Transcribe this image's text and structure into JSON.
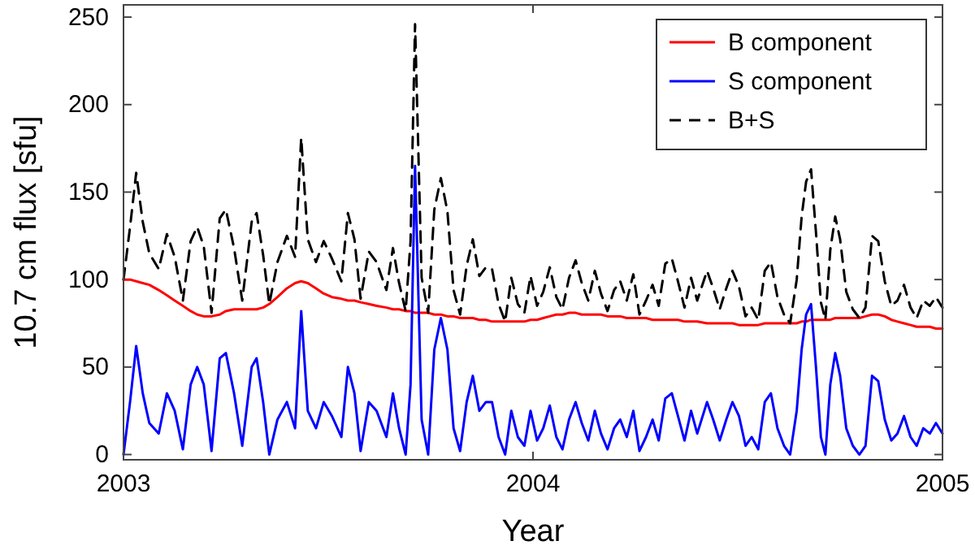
{
  "chart_data": {
    "type": "line",
    "xlabel": "Year",
    "ylabel": "10.7 cm flux [sfu]",
    "x": [
      2003.0,
      2003.016,
      2003.031,
      2003.047,
      2003.063,
      2003.086,
      2003.106,
      2003.125,
      2003.145,
      2003.164,
      2003.18,
      2003.196,
      2003.215,
      2003.235,
      2003.25,
      2003.27,
      2003.29,
      2003.313,
      2003.325,
      2003.341,
      2003.356,
      2003.376,
      2003.399,
      2003.419,
      2003.434,
      2003.45,
      2003.47,
      2003.489,
      2003.509,
      2003.532,
      2003.548,
      2003.564,
      2003.579,
      2003.599,
      2003.618,
      2003.642,
      2003.658,
      2003.673,
      2003.689,
      2003.701,
      2003.712,
      2003.728,
      2003.744,
      2003.759,
      2003.775,
      2003.791,
      2003.806,
      2003.822,
      2003.838,
      2003.853,
      2003.869,
      2003.885,
      2003.9,
      2003.916,
      2003.932,
      2003.947,
      2003.963,
      2003.979,
      2003.994,
      2004.01,
      2004.025,
      2004.041,
      2004.057,
      2004.072,
      2004.088,
      2004.104,
      2004.119,
      2004.135,
      2004.151,
      2004.166,
      2004.182,
      2004.198,
      2004.213,
      2004.229,
      2004.245,
      2004.26,
      2004.276,
      2004.292,
      2004.307,
      2004.323,
      2004.339,
      2004.354,
      2004.37,
      2004.386,
      2004.401,
      2004.425,
      2004.44,
      2004.456,
      2004.472,
      2004.487,
      2004.503,
      2004.519,
      2004.534,
      2004.55,
      2004.566,
      2004.581,
      2004.597,
      2004.613,
      2004.628,
      2004.644,
      2004.656,
      2004.667,
      2004.679,
      2004.691,
      2004.703,
      2004.714,
      2004.726,
      2004.738,
      2004.75,
      2004.765,
      2004.781,
      2004.797,
      2004.812,
      2004.828,
      2004.843,
      2004.859,
      2004.875,
      2004.89,
      2004.906,
      2004.922,
      2004.937,
      2004.953,
      2004.969,
      2004.984,
      2005.0
    ],
    "series": [
      {
        "name": "B component",
        "color": "#ff0000",
        "line_style": "solid",
        "values": [
          100,
          100,
          99,
          98,
          97,
          94,
          91,
          88,
          85,
          82,
          80,
          79,
          79,
          80,
          82,
          83,
          83,
          83,
          83,
          84,
          86,
          90,
          95,
          98,
          99,
          98,
          95,
          92,
          90,
          89,
          88,
          88,
          87,
          86,
          85,
          84,
          83,
          83,
          82,
          82,
          81,
          81,
          81,
          80,
          80,
          79,
          79,
          78,
          78,
          78,
          77,
          77,
          76,
          76,
          76,
          76,
          76,
          76,
          77,
          77,
          78,
          79,
          80,
          80,
          81,
          81,
          80,
          80,
          80,
          80,
          79,
          79,
          79,
          78,
          78,
          78,
          78,
          77,
          77,
          77,
          77,
          77,
          76,
          76,
          76,
          75,
          75,
          75,
          75,
          75,
          74,
          74,
          74,
          74,
          75,
          75,
          75,
          75,
          75,
          75,
          76,
          76,
          77,
          77,
          77,
          77,
          77,
          78,
          78,
          78,
          78,
          78,
          79,
          80,
          80,
          79,
          77,
          76,
          75,
          74,
          73,
          73,
          73,
          72,
          72
        ]
      },
      {
        "name": "S component",
        "color": "#0000ff",
        "line_style": "solid",
        "values": [
          0,
          30,
          62,
          35,
          18,
          12,
          35,
          25,
          3,
          40,
          50,
          40,
          2,
          55,
          58,
          35,
          5,
          50,
          55,
          30,
          0,
          20,
          30,
          15,
          82,
          25,
          15,
          30,
          22,
          10,
          50,
          35,
          2,
          30,
          25,
          10,
          35,
          15,
          0,
          40,
          165,
          20,
          0,
          60,
          78,
          60,
          15,
          2,
          30,
          45,
          25,
          30,
          30,
          10,
          0,
          25,
          10,
          5,
          25,
          8,
          15,
          28,
          10,
          3,
          20,
          30,
          18,
          8,
          25,
          12,
          3,
          15,
          20,
          10,
          25,
          2,
          10,
          20,
          8,
          32,
          35,
          22,
          8,
          25,
          12,
          30,
          20,
          8,
          20,
          30,
          22,
          5,
          10,
          3,
          30,
          35,
          15,
          5,
          0,
          25,
          60,
          80,
          86,
          50,
          10,
          0,
          40,
          58,
          45,
          15,
          5,
          0,
          5,
          45,
          42,
          20,
          8,
          12,
          22,
          10,
          5,
          15,
          12,
          18,
          12
        ]
      },
      {
        "name": "B+S",
        "color": "#000000",
        "line_style": "dashed",
        "values": [
          100,
          130,
          161,
          133,
          115,
          106,
          126,
          113,
          88,
          122,
          130,
          119,
          81,
          135,
          140,
          118,
          88,
          133,
          138,
          114,
          86,
          110,
          125,
          113,
          181,
          123,
          110,
          122,
          112,
          99,
          138,
          123,
          89,
          116,
          110,
          94,
          118,
          98,
          82,
          122,
          246,
          101,
          81,
          140,
          158,
          139,
          94,
          80,
          108,
          123,
          102,
          107,
          106,
          86,
          76,
          101,
          86,
          81,
          102,
          85,
          93,
          107,
          90,
          83,
          101,
          111,
          98,
          88,
          105,
          92,
          82,
          94,
          99,
          88,
          103,
          80,
          88,
          97,
          85,
          109,
          112,
          99,
          84,
          101,
          88,
          105,
          95,
          83,
          95,
          105,
          96,
          79,
          84,
          77,
          105,
          110,
          90,
          80,
          75,
          100,
          136,
          156,
          163,
          127,
          87,
          77,
          117,
          136,
          123,
          93,
          83,
          78,
          84,
          125,
          122,
          99,
          85,
          88,
          97,
          84,
          78,
          88,
          85,
          90,
          84
        ]
      }
    ],
    "xlim": [
      2003,
      2005
    ],
    "ylim": [
      -3,
      257
    ],
    "xticks": [
      2003,
      2004,
      2005
    ],
    "yticks": [
      0,
      50,
      100,
      150,
      200,
      250
    ],
    "grid": false,
    "legend": "top right",
    "marker": "none"
  }
}
